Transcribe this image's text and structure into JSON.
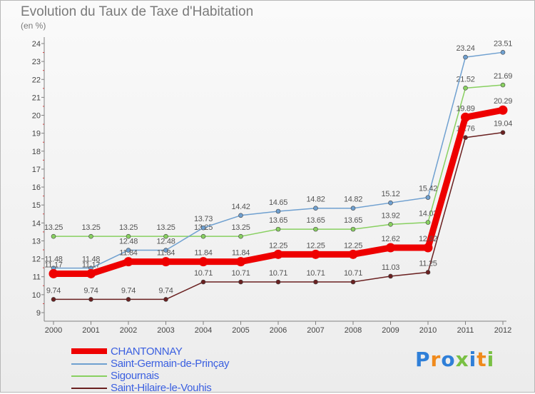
{
  "chart_data": {
    "type": "line",
    "title": "Evolution du Taux de Taxe d'Habitation",
    "unit_label": "(en %)",
    "x": [
      "2000",
      "2001",
      "2002",
      "2003",
      "2004",
      "2005",
      "2006",
      "2007",
      "2008",
      "2009",
      "2010",
      "2011",
      "2012"
    ],
    "ylim": [
      9,
      24
    ],
    "yticks": [
      9,
      10,
      11,
      12,
      13,
      14,
      15,
      16,
      17,
      18,
      19,
      20,
      21,
      22,
      23,
      24
    ],
    "grid": false,
    "legend_position": "bottom-left",
    "series": [
      {
        "name": "Saint-Hilaire-le-Vouhis",
        "color": "#6a2020",
        "values": [
          9.74,
          9.74,
          9.74,
          9.74,
          10.71,
          10.71,
          10.71,
          10.71,
          10.71,
          11.03,
          11.25,
          18.76,
          19.04
        ],
        "labels": [
          "9.74",
          "9.74",
          "9.74",
          "9.74",
          "10.71",
          "10.71",
          "10.71",
          "10.71",
          "10.71",
          "11.03",
          "11.25",
          "18.76",
          "19.04"
        ]
      },
      {
        "name": "Sigournais",
        "color": "#88d060",
        "values": [
          13.25,
          13.25,
          13.25,
          13.25,
          13.25,
          13.25,
          13.65,
          13.65,
          13.65,
          13.92,
          14.03,
          21.52,
          21.69
        ],
        "labels": [
          "13.25",
          "13.25",
          "13.25",
          "13.25",
          "13.25",
          "13.25",
          "13.65",
          "13.65",
          "13.65",
          "13.92",
          "14.03",
          "21.52",
          "21.69"
        ]
      },
      {
        "name": "Saint-Germain-de-Prinçay",
        "color": "#6fa0d0",
        "values": [
          11.48,
          11.48,
          12.48,
          12.48,
          13.73,
          14.42,
          14.65,
          14.82,
          14.82,
          15.12,
          15.42,
          23.24,
          23.51
        ],
        "labels": [
          "11.48",
          "11.48",
          "12.48",
          "12.48",
          "13.73",
          "14.42",
          "14.65",
          "14.82",
          "14.82",
          "15.12",
          "15.42",
          "23.24",
          "23.51"
        ]
      },
      {
        "name": "CHANTONNAY",
        "color": "#ee0000",
        "values": [
          11.17,
          11.17,
          11.84,
          11.84,
          11.84,
          11.84,
          12.25,
          12.25,
          12.25,
          12.62,
          12.62,
          19.89,
          20.29
        ],
        "labels": [
          "11.17",
          "11.17",
          "11.84",
          "11.84",
          "11.84",
          "11.84",
          "12.25",
          "12.25",
          "12.25",
          "12.62",
          "12.62",
          "19.89",
          "20.29"
        ]
      }
    ]
  },
  "legend": [
    {
      "label": "CHANTONNAY",
      "color": "#ee0000",
      "thick": true
    },
    {
      "label": "Saint-Germain-de-Prinçay",
      "color": "#6fa0d0",
      "thick": false
    },
    {
      "label": "Sigournais",
      "color": "#88d060",
      "thick": false
    },
    {
      "label": "Saint-Hilaire-le-Vouhis",
      "color": "#6a2020",
      "thick": false
    }
  ],
  "legend_text_color": "#3a5fe0",
  "brand": {
    "text": "Proxiti",
    "letter_colors": [
      "#2f7fd8",
      "#f08a1c",
      "#2f7fd8",
      "#79c043",
      "#2f7fd8",
      "#f08a1c",
      "#79c043"
    ]
  }
}
